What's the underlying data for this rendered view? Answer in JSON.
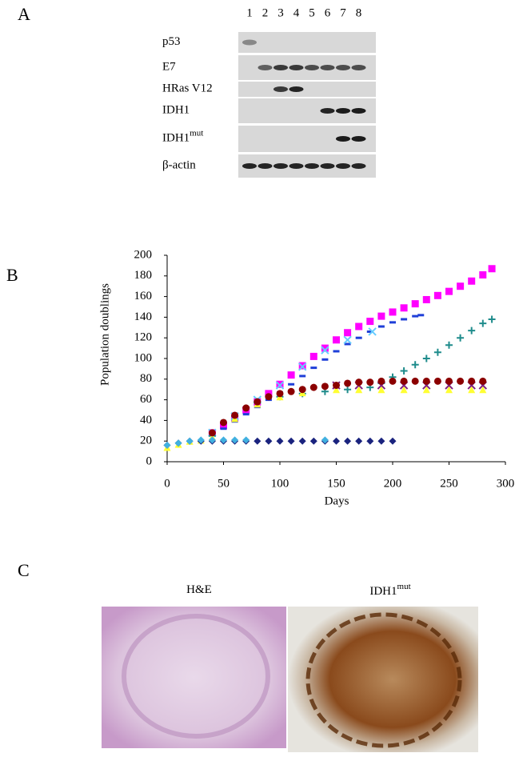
{
  "panel_a": {
    "label": "A",
    "lanes": [
      "1",
      "2",
      "3",
      "4",
      "5",
      "6",
      "7",
      "8"
    ],
    "rows": [
      {
        "text": "p53"
      },
      {
        "text": "E7"
      },
      {
        "text": "HRas V12"
      },
      {
        "text": "IDH1"
      },
      {
        "text": "IDH1",
        "sup": "mut"
      },
      {
        "text": "β-actin"
      }
    ]
  },
  "panel_b": {
    "label": "B"
  },
  "chart_data": {
    "type": "line",
    "xlabel": "Days",
    "ylabel": "Population doublings",
    "xlim": [
      0,
      300
    ],
    "xticks": [
      0,
      50,
      100,
      150,
      200,
      250,
      300
    ],
    "ylim": [
      0,
      200
    ],
    "yticks": [
      0,
      20,
      40,
      60,
      80,
      100,
      120,
      140,
      160,
      180,
      200
    ],
    "series": [
      {
        "color": "#ff00ff",
        "marker": "square",
        "x": [
          40,
          50,
          60,
          70,
          80,
          90,
          100,
          110,
          120,
          130,
          140,
          150,
          160,
          170,
          180,
          190,
          200,
          210,
          220,
          230,
          240,
          250,
          260,
          270,
          280,
          288
        ],
        "values": [
          28,
          35,
          42,
          50,
          58,
          66,
          75,
          84,
          93,
          102,
          110,
          118,
          125,
          131,
          136,
          141,
          145,
          149,
          153,
          157,
          161,
          165,
          170,
          175,
          181,
          187
        ]
      },
      {
        "color": "#1f3fd8",
        "marker": "dash",
        "x": [
          40,
          50,
          60,
          70,
          80,
          90,
          100,
          110,
          120,
          130,
          140,
          150,
          160,
          170,
          180,
          190,
          200,
          210,
          220,
          225
        ],
        "values": [
          26,
          32,
          39,
          46,
          53,
          60,
          67,
          75,
          83,
          91,
          99,
          107,
          114,
          120,
          126,
          131,
          135,
          138,
          141,
          142
        ]
      },
      {
        "color": "#66ccff",
        "marker": "x",
        "x": [
          40,
          60,
          80,
          100,
          120,
          140,
          160,
          182
        ],
        "values": [
          28,
          44,
          60,
          74,
          92,
          108,
          118,
          126
        ]
      },
      {
        "color": "#1f8c8c",
        "marker": "plus",
        "x": [
          40,
          60,
          80,
          100,
          120,
          140,
          160,
          180,
          190,
          200,
          210,
          220,
          230,
          240,
          250,
          260,
          270,
          280,
          288
        ],
        "values": [
          25,
          44,
          58,
          63,
          66,
          68,
          70,
          72,
          76,
          82,
          88,
          94,
          100,
          106,
          113,
          120,
          127,
          134,
          138
        ]
      },
      {
        "color": "#ffff33",
        "marker": "triangle",
        "x": [
          0,
          10,
          20,
          30,
          40,
          60,
          80,
          100,
          120,
          150,
          170,
          190,
          210,
          230,
          250,
          270,
          280
        ],
        "values": [
          14,
          17,
          20,
          21,
          24,
          42,
          56,
          63,
          67,
          70,
          70,
          70,
          70,
          70,
          70,
          70,
          70
        ]
      },
      {
        "color": "#7f1f7f",
        "marker": "x",
        "x": [
          150,
          170,
          190,
          210,
          230,
          250,
          270,
          280
        ],
        "values": [
          74,
          74,
          74,
          74,
          74,
          74,
          74,
          74
        ]
      },
      {
        "color": "#8b0000",
        "marker": "circle",
        "x": [
          40,
          50,
          60,
          70,
          80,
          90,
          100,
          110,
          120,
          130,
          140,
          150,
          160,
          170,
          180,
          190,
          200,
          210,
          220,
          230,
          240,
          250,
          260,
          270,
          280
        ],
        "values": [
          28,
          38,
          45,
          52,
          58,
          63,
          66,
          68,
          70,
          72,
          73,
          74,
          76,
          77,
          77,
          78,
          78,
          78,
          78,
          78,
          78,
          78,
          78,
          78,
          78
        ]
      },
      {
        "color": "#1a237e",
        "marker": "diamond",
        "x": [
          0,
          10,
          20,
          30,
          40,
          50,
          60,
          70,
          80,
          90,
          100,
          110,
          120,
          130,
          140,
          150,
          160,
          170,
          180,
          190,
          200
        ],
        "values": [
          16,
          18,
          20,
          20,
          20,
          20,
          20,
          20,
          20,
          20,
          20,
          20,
          20,
          20,
          20,
          20,
          20,
          20,
          20,
          20,
          20
        ]
      },
      {
        "color": "#40b0e0",
        "marker": "diamond",
        "x": [
          0,
          10,
          20,
          30,
          40,
          50,
          60,
          70,
          140
        ],
        "values": [
          16,
          18,
          20,
          21,
          21,
          21,
          21,
          21,
          21
        ]
      }
    ]
  },
  "panel_c": {
    "label": "C",
    "titles": [
      {
        "text": "H&E"
      },
      {
        "text": "IDH1",
        "sup": "mut"
      }
    ]
  }
}
